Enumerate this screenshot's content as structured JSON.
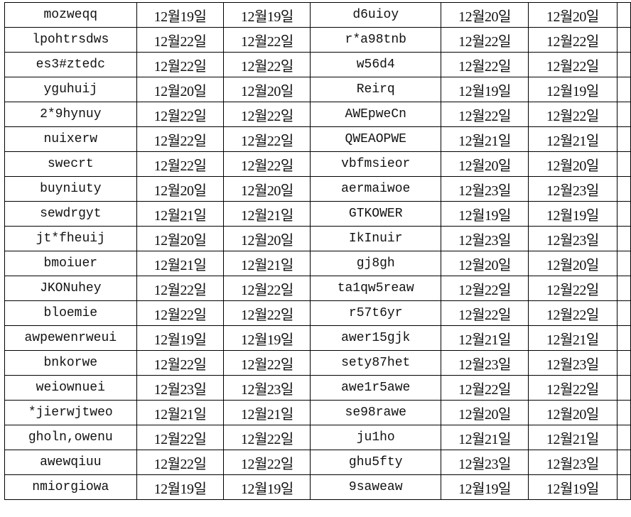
{
  "rows": [
    [
      "mozweqq",
      "12월19일",
      "12월19일",
      "d6uioy",
      "12월20일",
      "12월20일"
    ],
    [
      "lpohtrsdws",
      "12월22일",
      "12월22일",
      "r*a98tnb",
      "12월22일",
      "12월22일"
    ],
    [
      "es3#ztedc",
      "12월22일",
      "12월22일",
      "w56d4",
      "12월22일",
      "12월22일"
    ],
    [
      "yguhuij",
      "12월20일",
      "12월20일",
      "Reirq",
      "12월19일",
      "12월19일"
    ],
    [
      "2*9hynuy",
      "12월22일",
      "12월22일",
      "AWEpweCn",
      "12월22일",
      "12월22일"
    ],
    [
      "nuixerw",
      "12월22일",
      "12월22일",
      "QWEAOPWE",
      "12월21일",
      "12월21일"
    ],
    [
      "swecrt",
      "12월22일",
      "12월22일",
      "vbfmsieor",
      "12월20일",
      "12월20일"
    ],
    [
      "buyniuty",
      "12월20일",
      "12월20일",
      "aermaiwoe",
      "12월23일",
      "12월23일"
    ],
    [
      "sewdrgyt",
      "12월21일",
      "12월21일",
      "GTKOWER",
      "12월19일",
      "12월19일"
    ],
    [
      "jt*fheuij",
      "12월20일",
      "12월20일",
      "IkInuir",
      "12월23일",
      "12월23일"
    ],
    [
      "bmoiuer",
      "12월21일",
      "12월21일",
      "gj8gh",
      "12월20일",
      "12월20일"
    ],
    [
      "JKONuhey",
      "12월22일",
      "12월22일",
      "ta1qw5reaw",
      "12월22일",
      "12월22일"
    ],
    [
      "bloemie",
      "12월22일",
      "12월22일",
      "r57t6yr",
      "12월22일",
      "12월22일"
    ],
    [
      "awpewenrweui",
      "12월19일",
      "12월19일",
      "awer15gjk",
      "12월21일",
      "12월21일"
    ],
    [
      "bnkorwe",
      "12월22일",
      "12월22일",
      "sety87het",
      "12월23일",
      "12월23일"
    ],
    [
      "weiownuei",
      "12월23일",
      "12월23일",
      "awe1r5awe",
      "12월22일",
      "12월22일"
    ],
    [
      "*jierwjtweo",
      "12월21일",
      "12월21일",
      "se98rawe",
      "12월20일",
      "12월20일"
    ],
    [
      "gholn,owenu",
      "12월22일",
      "12월22일",
      "ju1ho",
      "12월21일",
      "12월21일"
    ],
    [
      "awewqiuu",
      "12월22일",
      "12월22일",
      "ghu5fty",
      "12월23일",
      "12월23일"
    ],
    [
      "nmiorgiowa",
      "12월19일",
      "12월19일",
      "9saweaw",
      "12월19일",
      "12월19일"
    ]
  ]
}
